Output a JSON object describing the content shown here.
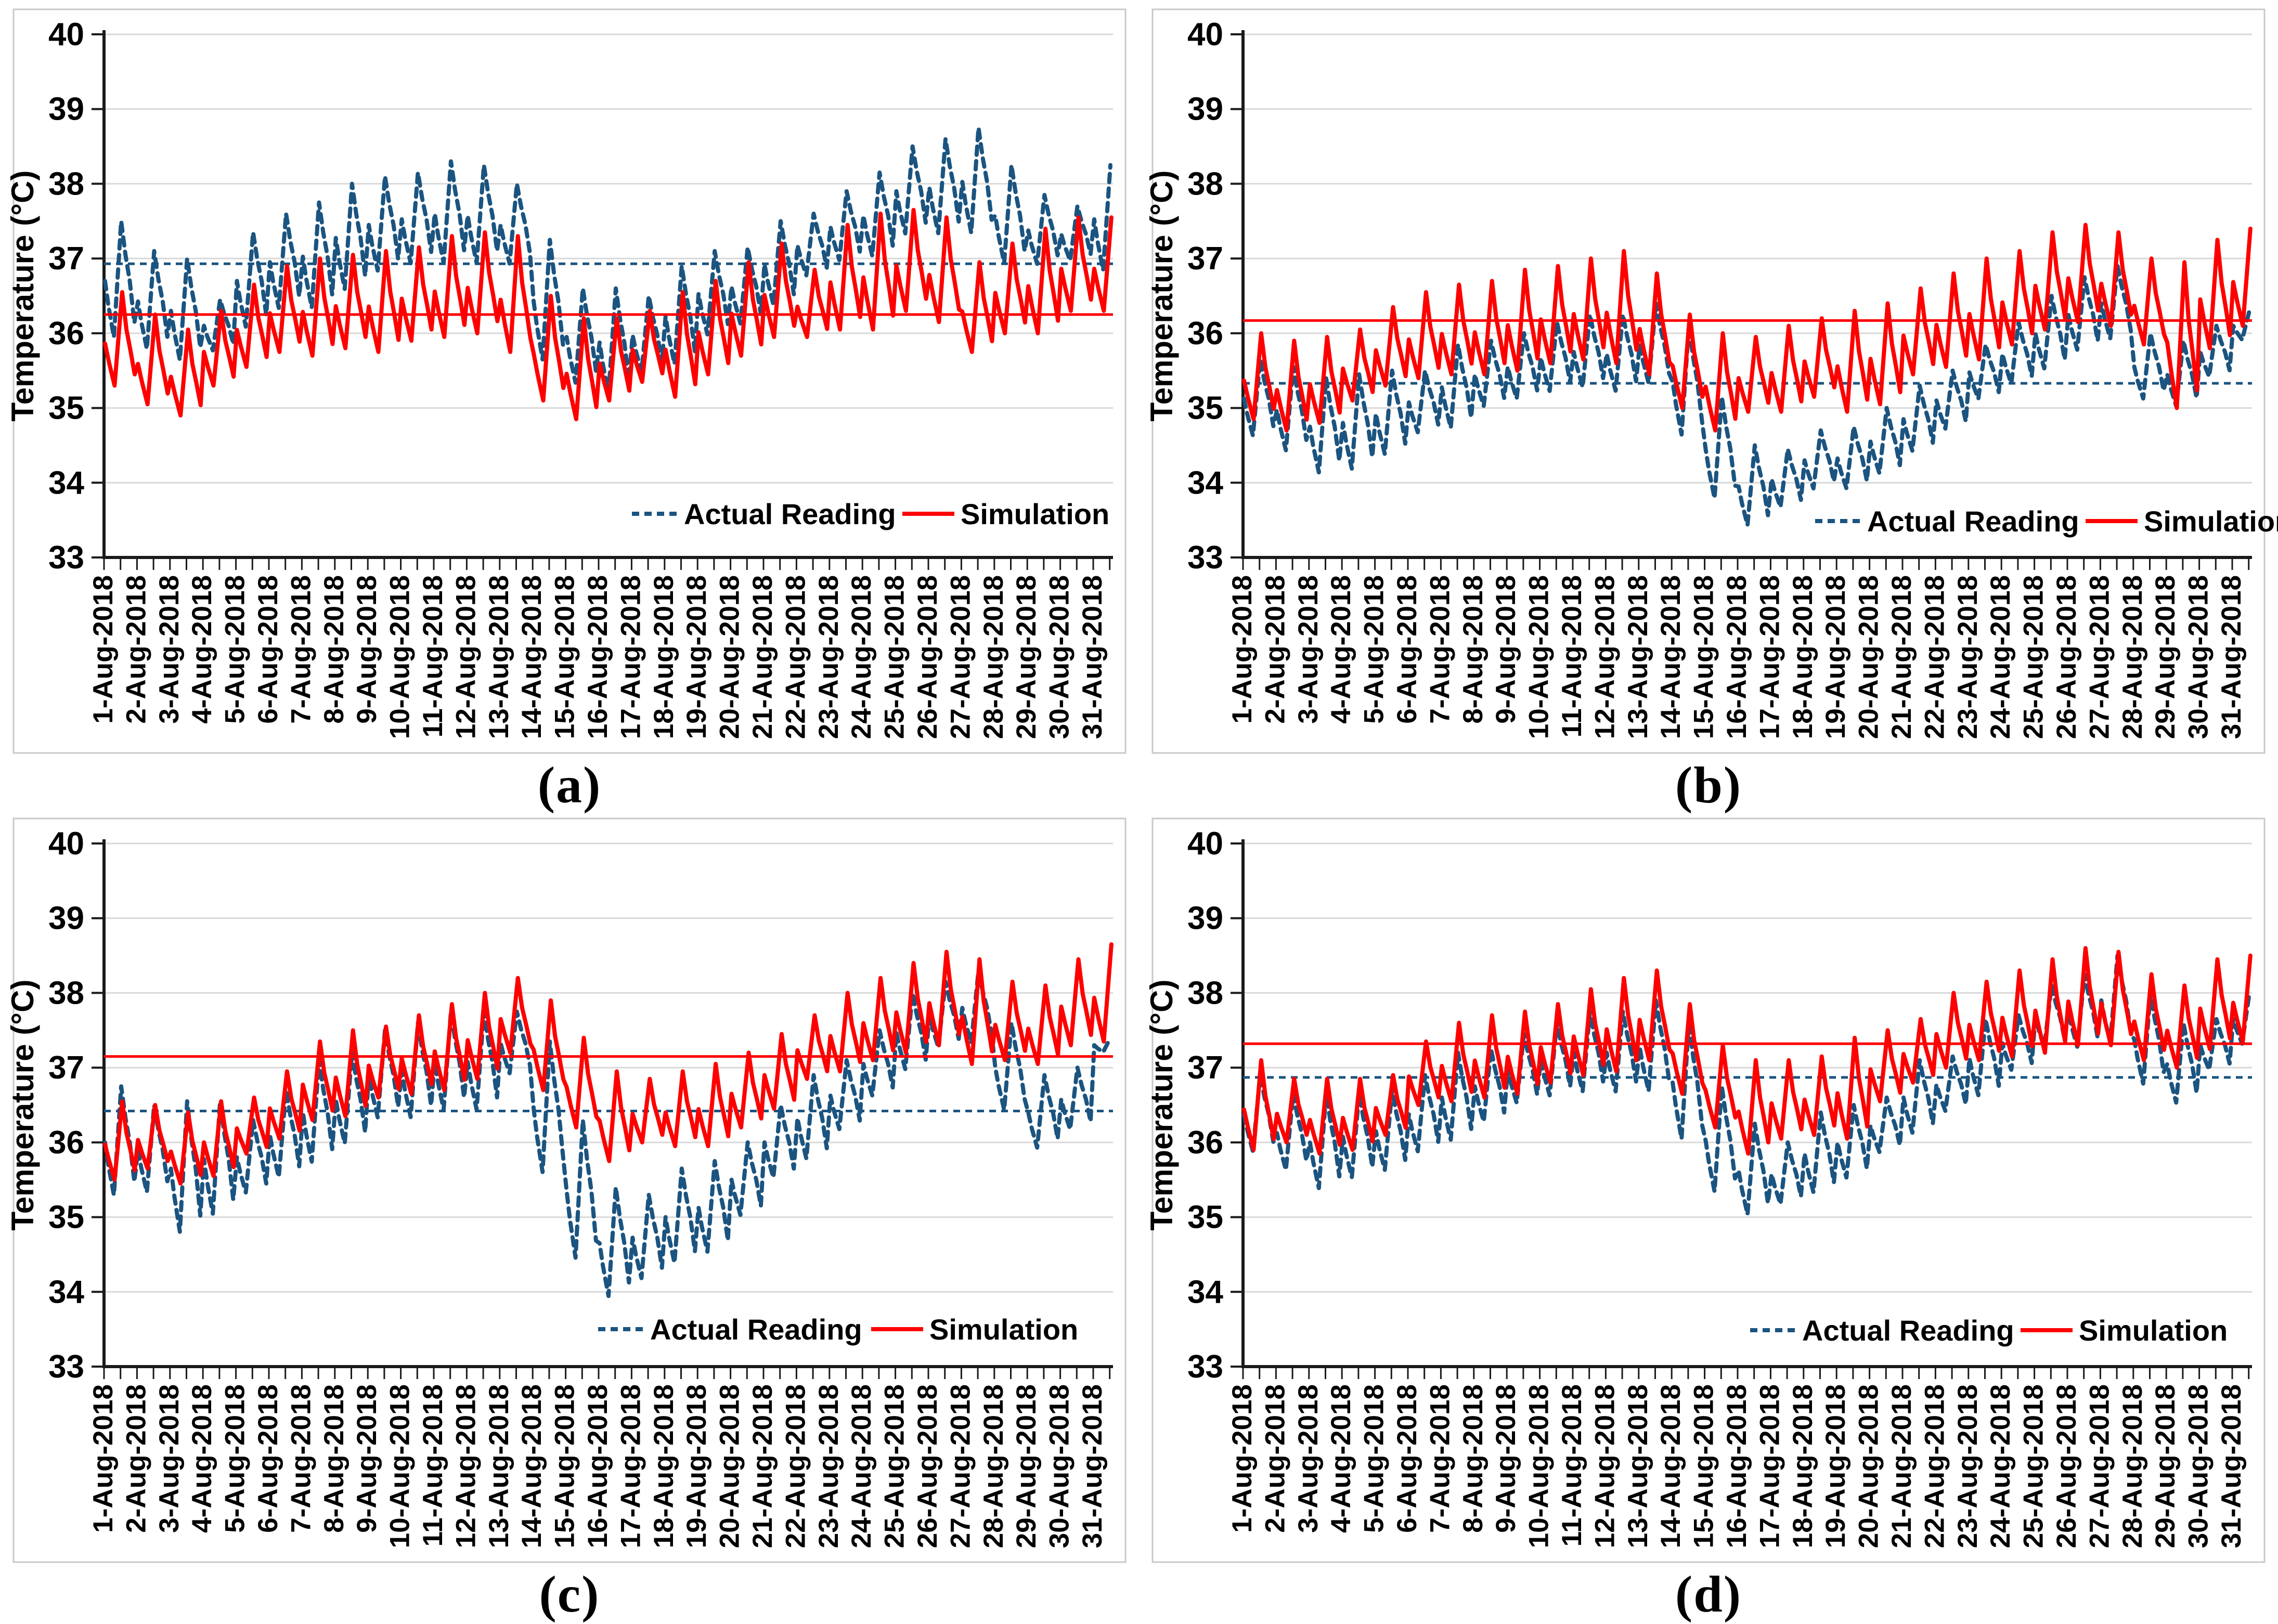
{
  "figure": {
    "captions": {
      "a": "(a)",
      "b": "(b)",
      "c": "(c)",
      "d": "(d)"
    }
  },
  "legend": {
    "actual": "Actual Reading",
    "simulation": "Simulation"
  },
  "colors": {
    "actual": "#1B5480",
    "simulation": "#FF0000",
    "grid": "#D9D9D9",
    "axis": "#1A1A1A",
    "text": "#000000",
    "panel_border": "#C9C9C9"
  },
  "axes": {
    "y_title": "Temperature (°C)",
    "ylim": [
      33,
      40
    ],
    "y_ticks": [
      40,
      39,
      38,
      37,
      36,
      35,
      34,
      33
    ],
    "grid": "horizontal",
    "x_labels": [
      "1-Aug-2018",
      "2-Aug-2018",
      "3-Aug-2018",
      "4-Aug-2018",
      "5-Aug-2018",
      "6-Aug-2018",
      "7-Aug-2018",
      "8-Aug-2018",
      "9-Aug-2018",
      "10-Aug-2018",
      "11-Aug-2018",
      "12-Aug-2018",
      "13-Aug-2018",
      "14-Aug-2018",
      "15-Aug-2018",
      "16-Aug-2018",
      "17-Aug-2018",
      "18-Aug-2018",
      "19-Aug-2018",
      "20-Aug-2018",
      "21-Aug-2018",
      "22-Aug-2018",
      "23-Aug-2018",
      "24-Aug-2018",
      "25-Aug-2018",
      "26-Aug-2018",
      "27-Aug-2018",
      "28-Aug-2018",
      "29-Aug-2018",
      "30-Aug-2018",
      "31-Aug-2018"
    ]
  },
  "waveform": {
    "actual": {
      "phases": [
        0.03,
        0.13,
        0.3,
        0.52,
        0.65,
        0.78,
        0.92
      ],
      "levels": [
        0.5,
        0.3,
        0.03,
        1.0,
        0.72,
        0.5,
        0.15
      ]
    },
    "simulation": {
      "phases": [
        0.03,
        0.15,
        0.32,
        0.55,
        0.68,
        0.8,
        0.93
      ],
      "levels": [
        0.45,
        0.25,
        0.0,
        1.0,
        0.6,
        0.38,
        0.12
      ]
    }
  },
  "chart_data": [
    {
      "panel": "a",
      "type": "line",
      "x_unit": "day of August 2018",
      "series": [
        {
          "name": "Actual Reading",
          "style": "dashed",
          "mean": 36.93,
          "daily_troughs": [
            35.9,
            35.75,
            35.6,
            35.75,
            36.05,
            36.3,
            36.3,
            36.55,
            36.8,
            36.9,
            36.9,
            36.9,
            36.9,
            35.6,
            35.3,
            35.15,
            35.45,
            35.55,
            35.95,
            36.1,
            36.35,
            36.75,
            36.95,
            37.0,
            37.3,
            37.3,
            37.3,
            36.9,
            36.9,
            36.95,
            36.8
          ],
          "daily_peaks": [
            37.5,
            37.1,
            37.0,
            36.45,
            37.35,
            37.6,
            37.75,
            38.0,
            38.1,
            38.15,
            38.3,
            38.25,
            38.0,
            37.25,
            36.6,
            36.6,
            36.5,
            36.9,
            37.1,
            37.15,
            37.5,
            37.6,
            37.9,
            38.15,
            38.5,
            38.6,
            38.75,
            38.25,
            37.85,
            37.7,
            38.25
          ]
        },
        {
          "name": "Simulation",
          "style": "solid",
          "mean": 36.25,
          "daily_troughs": [
            35.3,
            35.05,
            34.9,
            35.3,
            35.55,
            35.75,
            35.7,
            35.8,
            35.75,
            35.9,
            35.95,
            36.0,
            35.75,
            35.1,
            34.85,
            35.1,
            35.35,
            35.15,
            35.45,
            35.7,
            35.95,
            35.95,
            36.05,
            36.05,
            36.3,
            36.15,
            35.75,
            36.0,
            36.0,
            36.3,
            36.3
          ],
          "daily_peaks": [
            36.55,
            36.25,
            36.05,
            36.3,
            36.65,
            36.9,
            37.0,
            37.05,
            37.1,
            37.15,
            37.3,
            37.35,
            37.3,
            36.5,
            36.2,
            36.2,
            36.3,
            36.55,
            36.7,
            36.95,
            37.2,
            36.85,
            37.45,
            37.6,
            37.65,
            37.55,
            36.95,
            37.2,
            37.4,
            37.55,
            37.55
          ]
        }
      ]
    },
    {
      "panel": "b",
      "type": "line",
      "x_unit": "day of August 2018",
      "series": [
        {
          "name": "Actual Reading",
          "style": "dashed",
          "mean": 35.33,
          "daily_troughs": [
            34.6,
            34.4,
            34.1,
            34.15,
            34.35,
            34.65,
            34.7,
            35.0,
            35.1,
            35.2,
            35.25,
            35.2,
            35.3,
            34.6,
            33.75,
            33.4,
            33.65,
            33.9,
            33.9,
            34.1,
            34.4,
            34.7,
            35.1,
            35.3,
            35.5,
            35.75,
            35.9,
            35.1,
            35.0,
            35.4,
            35.9
          ],
          "daily_peaks": [
            35.65,
            35.55,
            35.4,
            35.45,
            35.5,
            35.5,
            35.85,
            35.9,
            36.0,
            36.15,
            36.25,
            36.25,
            36.4,
            36.1,
            35.15,
            34.5,
            34.45,
            34.7,
            34.75,
            35.0,
            35.3,
            35.5,
            35.85,
            36.15,
            36.5,
            36.75,
            36.9,
            36.0,
            35.9,
            36.1,
            36.3
          ]
        },
        {
          "name": "Simulation",
          "style": "solid",
          "mean": 36.17,
          "daily_troughs": [
            34.85,
            34.7,
            34.8,
            35.1,
            35.3,
            35.4,
            35.45,
            35.45,
            35.5,
            35.6,
            35.65,
            35.6,
            35.45,
            35.0,
            34.7,
            34.95,
            34.95,
            35.15,
            34.95,
            35.05,
            35.45,
            35.55,
            35.65,
            35.85,
            36.05,
            36.15,
            36.1,
            35.85,
            35.0,
            35.8,
            36.1
          ],
          "daily_peaks": [
            36.0,
            35.9,
            35.95,
            36.05,
            36.35,
            36.55,
            36.65,
            36.7,
            36.85,
            36.9,
            37.0,
            37.1,
            36.8,
            36.25,
            36.0,
            35.95,
            36.1,
            36.2,
            36.3,
            36.4,
            36.6,
            36.8,
            37.0,
            37.1,
            37.35,
            37.45,
            37.35,
            37.0,
            36.95,
            37.25,
            37.4
          ]
        }
      ]
    },
    {
      "panel": "c",
      "type": "line",
      "x_unit": "day of August 2018",
      "series": [
        {
          "name": "Actual Reading",
          "style": "dashed",
          "mean": 36.42,
          "daily_troughs": [
            35.25,
            35.3,
            34.75,
            35.0,
            35.3,
            35.5,
            35.7,
            35.95,
            36.3,
            36.3,
            36.4,
            36.4,
            36.9,
            35.55,
            34.4,
            33.9,
            34.15,
            34.35,
            34.5,
            35.0,
            35.5,
            35.75,
            36.15,
            36.6,
            36.95,
            37.25,
            37.3,
            36.4,
            35.9,
            36.15,
            37.2
          ],
          "daily_peaks": [
            36.75,
            36.5,
            36.55,
            36.55,
            36.3,
            36.7,
            37.1,
            37.2,
            37.5,
            37.6,
            37.75,
            37.75,
            37.75,
            37.35,
            36.3,
            35.4,
            35.3,
            35.65,
            35.75,
            36.0,
            36.5,
            36.9,
            37.1,
            37.5,
            38.0,
            38.15,
            38.3,
            37.6,
            36.9,
            37.0,
            37.4
          ]
        },
        {
          "name": "Simulation",
          "style": "solid",
          "mean": 37.15,
          "daily_troughs": [
            35.5,
            35.65,
            35.45,
            35.55,
            35.85,
            36.05,
            36.3,
            36.35,
            36.6,
            36.65,
            36.7,
            36.85,
            37.2,
            36.7,
            36.2,
            35.75,
            36.0,
            35.95,
            35.95,
            36.2,
            36.45,
            36.85,
            36.95,
            37.1,
            37.2,
            37.3,
            37.05,
            37.1,
            37.05,
            37.3,
            37.35
          ],
          "daily_peaks": [
            36.55,
            36.5,
            36.4,
            36.55,
            36.6,
            36.95,
            37.35,
            37.5,
            37.55,
            37.7,
            37.85,
            38.0,
            38.2,
            37.9,
            37.4,
            36.95,
            36.85,
            36.95,
            37.05,
            37.2,
            37.45,
            37.7,
            38.0,
            38.2,
            38.4,
            38.55,
            38.45,
            38.15,
            38.1,
            38.45,
            38.65
          ]
        }
      ]
    },
    {
      "panel": "d",
      "type": "line",
      "x_unit": "day of August 2018",
      "series": [
        {
          "name": "Actual Reading",
          "style": "dashed",
          "mean": 36.87,
          "daily_troughs": [
            35.85,
            35.6,
            35.35,
            35.5,
            35.6,
            35.85,
            36.0,
            36.25,
            36.5,
            36.6,
            36.65,
            36.65,
            36.65,
            36.0,
            35.3,
            35.0,
            35.15,
            35.3,
            35.5,
            35.85,
            36.1,
            36.4,
            36.6,
            36.95,
            37.25,
            37.25,
            37.3,
            36.75,
            36.5,
            36.95,
            37.3
          ],
          "daily_peaks": [
            36.9,
            36.65,
            36.65,
            36.65,
            36.7,
            36.9,
            37.2,
            37.25,
            37.45,
            37.6,
            37.75,
            37.75,
            37.9,
            37.6,
            36.75,
            36.25,
            36.0,
            36.4,
            36.5,
            36.6,
            37.1,
            37.15,
            37.65,
            37.7,
            38.1,
            38.25,
            38.5,
            38.0,
            37.6,
            37.65,
            38.0
          ]
        },
        {
          "name": "Simulation",
          "style": "solid",
          "mean": 37.32,
          "daily_troughs": [
            35.9,
            36.0,
            35.85,
            35.9,
            36.1,
            36.5,
            36.55,
            36.6,
            36.65,
            36.8,
            36.9,
            36.95,
            37.1,
            36.65,
            36.2,
            35.85,
            36.05,
            36.1,
            36.05,
            36.55,
            36.8,
            37.0,
            37.1,
            37.15,
            37.2,
            37.3,
            37.3,
            37.1,
            37.0,
            37.25,
            37.35
          ],
          "daily_peaks": [
            37.1,
            36.85,
            36.85,
            36.85,
            36.9,
            37.35,
            37.6,
            37.7,
            37.75,
            37.85,
            38.05,
            38.2,
            38.3,
            37.85,
            37.3,
            37.1,
            37.1,
            37.15,
            37.4,
            37.5,
            37.65,
            38.0,
            38.15,
            38.3,
            38.45,
            38.6,
            38.55,
            38.25,
            38.1,
            38.45,
            38.5
          ]
        }
      ]
    }
  ]
}
